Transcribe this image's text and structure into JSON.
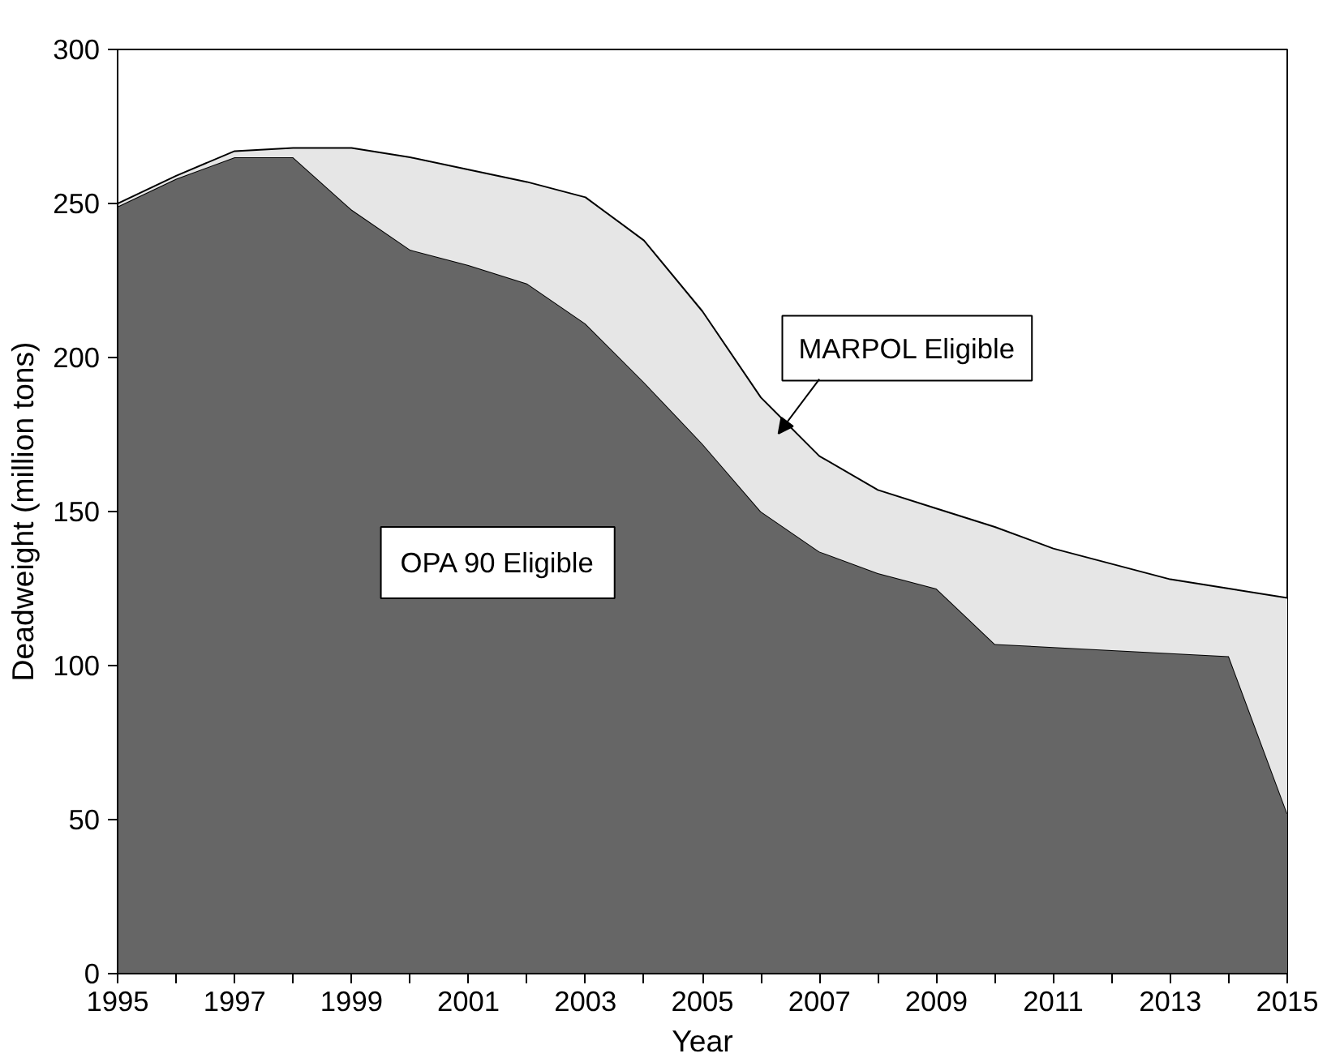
{
  "chart_data": {
    "type": "area",
    "stacked": true,
    "xlabel": "Year",
    "ylabel": "Deadweight (million tons)",
    "x": [
      1995,
      1996,
      1997,
      1998,
      1999,
      2000,
      2001,
      2002,
      2003,
      2004,
      2005,
      2006,
      2007,
      2008,
      2009,
      2010,
      2011,
      2012,
      2013,
      2014,
      2015
    ],
    "series": [
      {
        "name": "OPA 90 Eligible",
        "color": "#666666",
        "values": [
          249,
          258,
          265,
          265,
          248,
          235,
          230,
          224,
          211,
          192,
          172,
          150,
          137,
          130,
          125,
          107,
          106,
          105,
          104,
          103,
          52
        ]
      },
      {
        "name": "MARPOL Eligible",
        "color": "#e6e6e6",
        "values": [
          1,
          1,
          2,
          3,
          20,
          30,
          31,
          33,
          41,
          46,
          43,
          37,
          31,
          27,
          26,
          38,
          32,
          28,
          24,
          22,
          70
        ]
      }
    ],
    "xlim": [
      1995,
      2015
    ],
    "ylim": [
      0,
      300
    ],
    "xticks": [
      1995,
      {
        "value": 1996,
        "label": null
      },
      1997,
      {
        "value": 1998,
        "label": null
      },
      1999,
      {
        "value": 2000,
        "label": null
      },
      2001,
      {
        "value": 2002,
        "label": null
      },
      2003,
      {
        "value": 2004,
        "label": null
      },
      2005,
      {
        "value": 2006,
        "label": null
      },
      2007,
      {
        "value": 2008,
        "label": null
      },
      2009,
      {
        "value": 2010,
        "label": null
      },
      2011,
      {
        "value": 2012,
        "label": null
      },
      2013,
      {
        "value": 2014,
        "label": null
      },
      2015
    ],
    "yticks": [
      0,
      50,
      100,
      150,
      200,
      250,
      300
    ],
    "grid": false
  }
}
